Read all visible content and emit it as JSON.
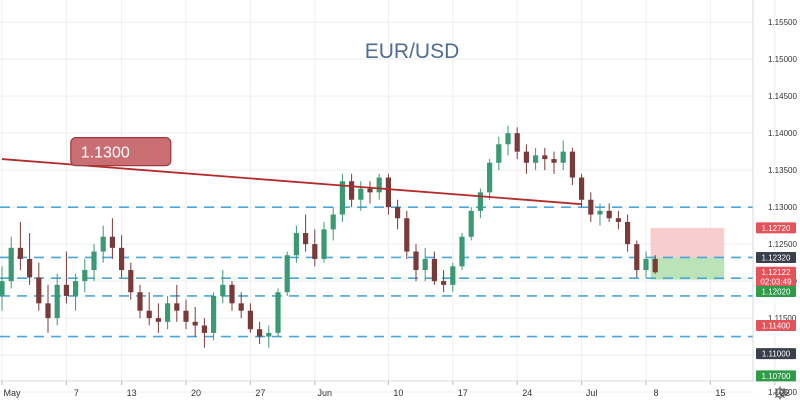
{
  "chart_data": {
    "type": "candlestick",
    "title": "EUR/USD",
    "colors": {
      "up": "#3a9a74",
      "down": "#7a3a3a",
      "level_line": "#4aa8d8",
      "trend_line": "#b52b2b",
      "callout_fill": "#c96e73",
      "target_zone": "#f7c4c6",
      "stop_zone": "#b6e3b4",
      "axis_text": "#333333",
      "grid": "#eeeeee"
    },
    "ylim": [
      1.1065,
      1.158
    ],
    "y_ticks": [
      "1.15500",
      "1.15000",
      "1.14500",
      "1.14000",
      "1.13500",
      "1.13000",
      "1.12500",
      "1.12000",
      "1.11500",
      "1.11000",
      "1.10500"
    ],
    "x_ticks": [
      "May",
      "7",
      "13",
      "20",
      "27",
      "Jun",
      "10",
      "17",
      "24",
      "Jul",
      "8",
      "15",
      "22"
    ],
    "x_tick_index": [
      0,
      7,
      13,
      20,
      27,
      34,
      42,
      49,
      56,
      63,
      70,
      77,
      84
    ],
    "horizontal_levels": [
      1.13,
      1.1232,
      1.1204,
      1.118,
      1.1125
    ],
    "trend_line": {
      "from": [
        0,
        1.1365
      ],
      "to": [
        63,
        1.1304
      ]
    },
    "callout": {
      "label": "1.1300",
      "x": 4
    },
    "trade_zones": {
      "target": {
        "x_from": 70.5,
        "x_to": 78.5,
        "y_from": 1.1272,
        "y_to": 1.1232
      },
      "stop": {
        "x_from": 70.5,
        "x_to": 78.5,
        "y_from": 1.1232,
        "y_to": 1.1202
      }
    },
    "price_tags": [
      {
        "label": "1.12720",
        "value": 1.1272,
        "color": "#e4525a"
      },
      {
        "label": "1.12320",
        "value": 1.1232,
        "color": "#3a3f4b"
      },
      {
        "label": "1.12122",
        "value": 1.1212,
        "color": "#e4525a"
      },
      {
        "label": "02:03:49",
        "value": 1.11995,
        "color": "#e4525a"
      },
      {
        "label": "1.12020",
        "value": 1.1186,
        "color": "#2e9b49"
      },
      {
        "label": "1.11400",
        "value": 1.114,
        "color": "#e4525a"
      },
      {
        "label": "1.11000",
        "value": 1.1102,
        "color": "#3a3f4b"
      },
      {
        "label": "1.10700",
        "value": 1.1072,
        "color": "#2e9b49"
      }
    ],
    "ohlc": [
      [
        1.118,
        1.122,
        1.116,
        1.12
      ],
      [
        1.12,
        1.126,
        1.119,
        1.1245
      ],
      [
        1.1245,
        1.128,
        1.1215,
        1.123
      ],
      [
        1.123,
        1.1265,
        1.1195,
        1.1205
      ],
      [
        1.1205,
        1.1225,
        1.116,
        1.117
      ],
      [
        1.117,
        1.1195,
        1.113,
        1.115
      ],
      [
        1.115,
        1.121,
        1.114,
        1.1195
      ],
      [
        1.1195,
        1.124,
        1.117,
        1.118
      ],
      [
        1.118,
        1.121,
        1.116,
        1.12
      ],
      [
        1.12,
        1.123,
        1.1185,
        1.1215
      ],
      [
        1.1215,
        1.125,
        1.12,
        1.124
      ],
      [
        1.124,
        1.1275,
        1.1225,
        1.126
      ],
      [
        1.126,
        1.1285,
        1.123,
        1.1245
      ],
      [
        1.1245,
        1.1262,
        1.1205,
        1.1215
      ],
      [
        1.1215,
        1.1225,
        1.1175,
        1.1185
      ],
      [
        1.1185,
        1.1195,
        1.115,
        1.116
      ],
      [
        1.116,
        1.1185,
        1.114,
        1.115
      ],
      [
        1.115,
        1.117,
        1.113,
        1.1145
      ],
      [
        1.1145,
        1.118,
        1.1135,
        1.117
      ],
      [
        1.117,
        1.1195,
        1.1145,
        1.116
      ],
      [
        1.116,
        1.1175,
        1.1135,
        1.1145
      ],
      [
        1.1145,
        1.1165,
        1.1125,
        1.114
      ],
      [
        1.114,
        1.115,
        1.111,
        1.113
      ],
      [
        1.113,
        1.1185,
        1.112,
        1.118
      ],
      [
        1.118,
        1.1215,
        1.117,
        1.1195
      ],
      [
        1.1195,
        1.12,
        1.116,
        1.117
      ],
      [
        1.117,
        1.1185,
        1.115,
        1.116
      ],
      [
        1.116,
        1.117,
        1.113,
        1.1135
      ],
      [
        1.1135,
        1.1145,
        1.1115,
        1.1125
      ],
      [
        1.1125,
        1.114,
        1.111,
        1.113
      ],
      [
        1.113,
        1.119,
        1.1125,
        1.1185
      ],
      [
        1.1185,
        1.124,
        1.118,
        1.1235
      ],
      [
        1.1235,
        1.1275,
        1.1225,
        1.1265
      ],
      [
        1.1265,
        1.129,
        1.124,
        1.125
      ],
      [
        1.125,
        1.127,
        1.122,
        1.123
      ],
      [
        1.123,
        1.128,
        1.1225,
        1.127
      ],
      [
        1.127,
        1.13,
        1.1255,
        1.129
      ],
      [
        1.129,
        1.1345,
        1.128,
        1.1335
      ],
      [
        1.1335,
        1.1345,
        1.13,
        1.131
      ],
      [
        1.131,
        1.1335,
        1.1295,
        1.1325
      ],
      [
        1.1325,
        1.1335,
        1.1305,
        1.132
      ],
      [
        1.132,
        1.1345,
        1.131,
        1.134
      ],
      [
        1.134,
        1.1345,
        1.129,
        1.13
      ],
      [
        1.13,
        1.131,
        1.127,
        1.1285
      ],
      [
        1.1285,
        1.1295,
        1.123,
        1.124
      ],
      [
        1.124,
        1.125,
        1.12,
        1.1215
      ],
      [
        1.1215,
        1.1245,
        1.12,
        1.123
      ],
      [
        1.123,
        1.124,
        1.1195,
        1.12
      ],
      [
        1.12,
        1.1215,
        1.1185,
        1.1195
      ],
      [
        1.1195,
        1.1225,
        1.1185,
        1.122
      ],
      [
        1.122,
        1.1265,
        1.1215,
        1.126
      ],
      [
        1.126,
        1.13,
        1.1255,
        1.1295
      ],
      [
        1.1295,
        1.1325,
        1.1285,
        1.132
      ],
      [
        1.132,
        1.1365,
        1.131,
        1.136
      ],
      [
        1.136,
        1.1395,
        1.135,
        1.1385
      ],
      [
        1.1385,
        1.141,
        1.137,
        1.14
      ],
      [
        1.14,
        1.1408,
        1.1365,
        1.1375
      ],
      [
        1.1375,
        1.1385,
        1.1345,
        1.136
      ],
      [
        1.136,
        1.138,
        1.135,
        1.137
      ],
      [
        1.137,
        1.138,
        1.135,
        1.1365
      ],
      [
        1.1365,
        1.1375,
        1.1345,
        1.136
      ],
      [
        1.136,
        1.139,
        1.135,
        1.1375
      ],
      [
        1.1375,
        1.138,
        1.133,
        1.134
      ],
      [
        1.134,
        1.1345,
        1.13,
        1.131
      ],
      [
        1.131,
        1.132,
        1.128,
        1.129
      ],
      [
        1.129,
        1.1305,
        1.1275,
        1.1295
      ],
      [
        1.1295,
        1.1305,
        1.128,
        1.1285
      ],
      [
        1.1285,
        1.1295,
        1.127,
        1.128
      ],
      [
        1.128,
        1.129,
        1.124,
        1.125
      ],
      [
        1.125,
        1.1255,
        1.1205,
        1.1215
      ],
      [
        1.1215,
        1.124,
        1.1205,
        1.123
      ],
      [
        1.123,
        1.1235,
        1.121,
        1.1212
      ]
    ]
  },
  "toolbar": {
    "settings_icon": "gear-icon"
  }
}
